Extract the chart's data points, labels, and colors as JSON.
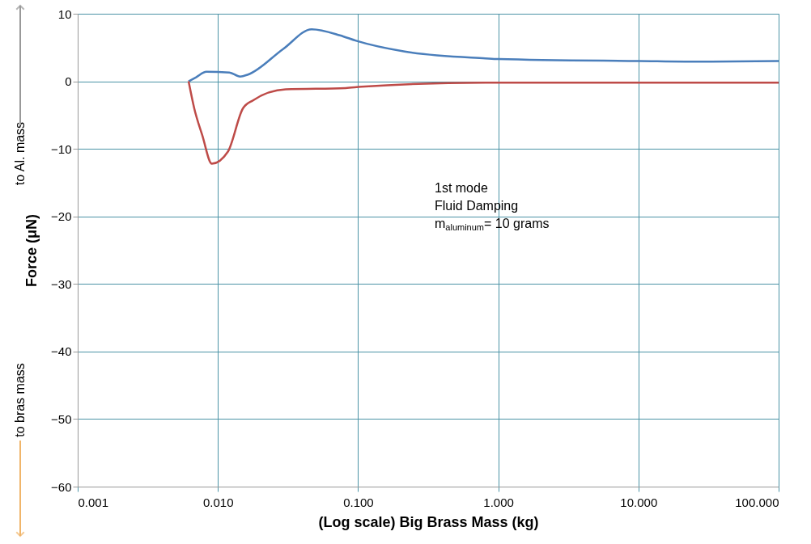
{
  "chart_data": {
    "type": "line",
    "xlabel": "(Log scale) Big Brass Mass (kg)",
    "ylabel": "Force (μN)",
    "annotations": [
      "to Al. mass",
      "to bras mass",
      "1st mode",
      "Fluid Damping",
      "m$_{aluminum}$= 10 grams"
    ],
    "log": "x",
    "xlim": [
      0.001,
      100
    ],
    "xticks": [
      {
        "value": 0.001,
        "label": "0.001"
      },
      {
        "value": 0.01,
        "label": "0.010"
      },
      {
        "value": 0.1,
        "label": "0.100"
      },
      {
        "value": 1,
        "label": "1.000"
      },
      {
        "value": 10,
        "label": "10.000"
      },
      {
        "value": 100,
        "label": "100.000"
      }
    ],
    "ylim": [
      -60,
      10
    ],
    "yticks": [
      -60,
      -50,
      -40,
      -30,
      -20,
      -10,
      0,
      10
    ],
    "grid": true,
    "marker": "none",
    "line_style": "solid",
    "series": [
      {
        "color": "#4a7ebb",
        "x": [
          0.00618,
          0.007,
          0.00828,
          0.01208,
          0.0144,
          0.0164,
          0.0293,
          0.0467,
          0.0743,
          0.0968,
          0.215,
          0.81,
          1,
          10,
          30,
          100
        ],
        "values": [
          0,
          0.6,
          1.4,
          1.3,
          0.7,
          1.0,
          4.8,
          7.7,
          6.8,
          6.0,
          4.4,
          3.4,
          3.3,
          3.0,
          2.9,
          3.0
        ]
      },
      {
        "color": "#be4b48",
        "x": [
          0.00618,
          0.00678,
          0.00774,
          0.00906,
          0.0118,
          0.0151,
          0.0179,
          0.0305,
          0.0815,
          0.106,
          0.81,
          10,
          100
        ],
        "values": [
          0,
          -4.0,
          -8.0,
          -12.2,
          -10.4,
          -4.0,
          -2.8,
          -1.2,
          -1.0,
          -0.8,
          -0.2,
          -0.2,
          -0.2
        ]
      }
    ]
  }
}
